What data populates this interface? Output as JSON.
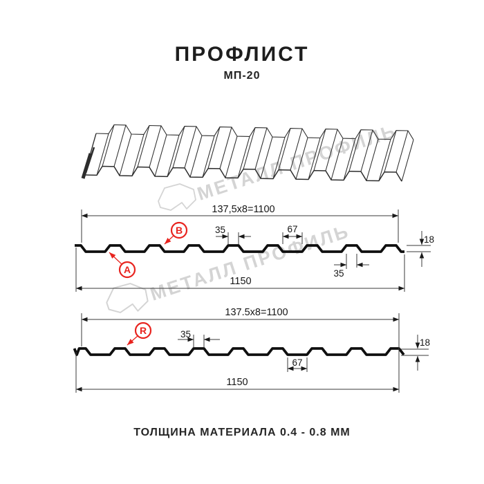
{
  "header": {
    "title": "ПРОФЛИСТ",
    "subtitle": "МП-20"
  },
  "watermark": {
    "text": "МЕТАЛЛ ПРОФИЛЬ"
  },
  "section_top": {
    "pitch_label": "137,5x8=1100",
    "crest_width_label": "35",
    "valley_width_label": "67",
    "height_label": "18",
    "crest_width_bottom_label": "35",
    "overall_width_label": "1150",
    "marker_a": "A",
    "marker_b": "B"
  },
  "section_bottom": {
    "pitch_label": "137.5x8=1100",
    "crest_width_label": "35",
    "valley_width_label": "67",
    "height_label": "18",
    "overall_width_label": "1150",
    "marker_r": "R"
  },
  "footer": {
    "thickness_note": "ТОЛЩИНА МАТЕРИАЛА 0.4 - 0.8 ММ"
  },
  "colors": {
    "accent_red": "#e8231e",
    "line_black": "#111111",
    "watermark_gray": "#d4d4d4"
  }
}
